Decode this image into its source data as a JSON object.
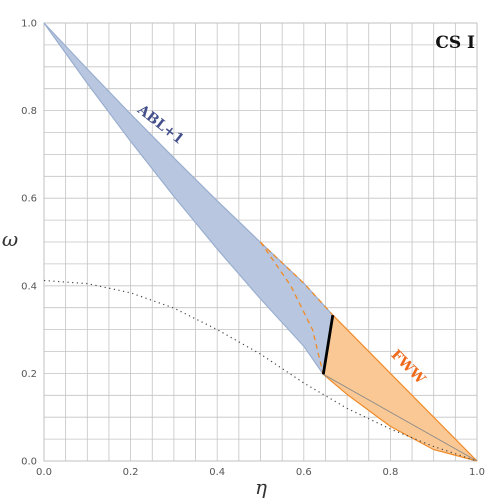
{
  "chart_data": {
    "type": "area",
    "title": "CS I",
    "xlabel": "η",
    "ylabel": "ω",
    "xlim": [
      0,
      1
    ],
    "ylim": [
      0,
      1
    ],
    "x_ticks": [
      "0.0",
      "0.2",
      "0.4",
      "0.6",
      "0.8",
      "1.0"
    ],
    "y_ticks": [
      "0.0",
      "0.2",
      "0.4",
      "0.6",
      "0.8",
      "1.0"
    ],
    "grid": true,
    "regions": [
      {
        "name": "ABL+1",
        "color": "#b8c7df",
        "edge_color": "#9aaed0",
        "label_color": "#45508a",
        "upper": [
          [
            0,
            1
          ],
          [
            0.1,
            0.895
          ],
          [
            0.2,
            0.792
          ],
          [
            0.3,
            0.692
          ],
          [
            0.4,
            0.594
          ],
          [
            0.5,
            0.499
          ],
          [
            0.6,
            0.406
          ],
          [
            0.667,
            0.333
          ]
        ],
        "lower": [
          [
            0,
            1
          ],
          [
            0.1,
            0.862
          ],
          [
            0.2,
            0.73
          ],
          [
            0.3,
            0.604
          ],
          [
            0.4,
            0.484
          ],
          [
            0.5,
            0.37
          ],
          [
            0.6,
            0.262
          ],
          [
            0.645,
            0.198
          ]
        ]
      },
      {
        "name": "FWW",
        "color": "#f9c894",
        "edge_color": "#f08b28",
        "label_color": "#ee6a1c",
        "upper": [
          [
            0.667,
            0.333
          ],
          [
            0.8,
            0.2
          ],
          [
            0.9,
            0.1
          ],
          [
            1.0,
            0.0
          ]
        ],
        "lower": [
          [
            0.645,
            0.198
          ],
          [
            0.7,
            0.152
          ],
          [
            0.8,
            0.079
          ],
          [
            0.9,
            0.026
          ],
          [
            1.0,
            0.0
          ]
        ]
      }
    ],
    "dashed_boundary": [
      [
        0.5,
        0.5
      ],
      [
        0.57,
        0.4
      ],
      [
        0.62,
        0.3
      ],
      [
        0.645,
        0.198
      ]
    ],
    "boundary_segment": [
      [
        0.645,
        0.198
      ],
      [
        0.667,
        0.333
      ]
    ],
    "dotted_curve": [
      [
        0,
        0.412
      ],
      [
        0.1,
        0.405
      ],
      [
        0.2,
        0.384
      ],
      [
        0.3,
        0.349
      ],
      [
        0.4,
        0.3
      ],
      [
        0.5,
        0.244
      ],
      [
        0.6,
        0.178
      ],
      [
        0.7,
        0.12
      ],
      [
        0.8,
        0.073
      ],
      [
        0.9,
        0.033
      ],
      [
        1.0,
        0.0
      ]
    ],
    "chord": [
      [
        0.645,
        0.198
      ],
      [
        1.0,
        0.0
      ]
    ]
  }
}
